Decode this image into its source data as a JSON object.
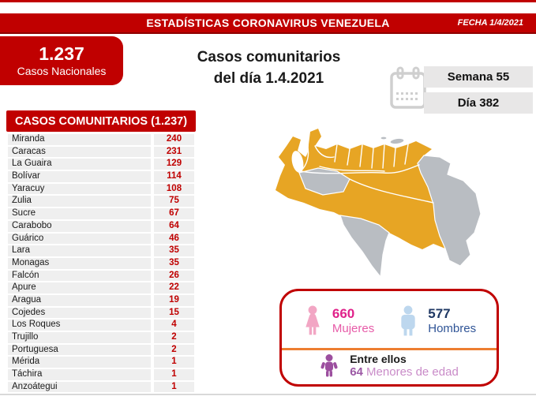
{
  "header": {
    "title": "ESTADÍSTICAS CORONAVIRUS VENEZUELA",
    "date_label": "FECHA 1/4/2021"
  },
  "nationals": {
    "value": "1.237",
    "label": "Casos Nacionales"
  },
  "main_title": {
    "line1": "Casos comunitarios",
    "line2": "del día 1.4.2021"
  },
  "period": {
    "week_label": "Semana 55",
    "day_label": "Día 382",
    "icon": "calendar-icon"
  },
  "table": {
    "header": "CASOS COMUNITARIOS (1.237)",
    "rows": [
      {
        "state": "Miranda",
        "cases": "240"
      },
      {
        "state": "Caracas",
        "cases": "231"
      },
      {
        "state": "La Guaira",
        "cases": "129"
      },
      {
        "state": "Bolívar",
        "cases": "114"
      },
      {
        "state": "Yaracuy",
        "cases": "108"
      },
      {
        "state": "Zulia",
        "cases": "75"
      },
      {
        "state": "Sucre",
        "cases": "67"
      },
      {
        "state": "Carabobo",
        "cases": "64"
      },
      {
        "state": "Guárico",
        "cases": "46"
      },
      {
        "state": "Lara",
        "cases": "35"
      },
      {
        "state": "Monagas",
        "cases": "35"
      },
      {
        "state": "Falcón",
        "cases": "26"
      },
      {
        "state": "Apure",
        "cases": "22"
      },
      {
        "state": "Aragua",
        "cases": "19"
      },
      {
        "state": "Cojedes",
        "cases": "15"
      },
      {
        "state": "Los Roques",
        "cases": "4"
      },
      {
        "state": "Trujillo",
        "cases": "2"
      },
      {
        "state": "Portuguesa",
        "cases": "2"
      },
      {
        "state": "Mérida",
        "cases": "1"
      },
      {
        "state": "Táchira",
        "cases": "1"
      },
      {
        "state": "Anzoátegui",
        "cases": "1"
      }
    ]
  },
  "map": {
    "name": "venezuela-states-map",
    "active_color": "#E7A524",
    "inactive_color": "#B9BDC2"
  },
  "gender_box": {
    "women": {
      "value": "660",
      "label": "Mujeres",
      "icon": "female-icon",
      "value_color": "#E0218A"
    },
    "men": {
      "value": "577",
      "label": "Hombres",
      "icon": "male-icon",
      "value_color": "#1F3864"
    },
    "minors": {
      "prefix": "Entre ellos",
      "value": "64",
      "label": "Menores de edad",
      "icon": "child-icon",
      "value_color": "#9C59A5"
    },
    "divider_color": "#ED7D31",
    "border_color": "#C00000"
  },
  "colors": {
    "brand_red": "#C00000",
    "row_gray": "#EFEFEF",
    "pill_gray": "#E8E7E7"
  }
}
